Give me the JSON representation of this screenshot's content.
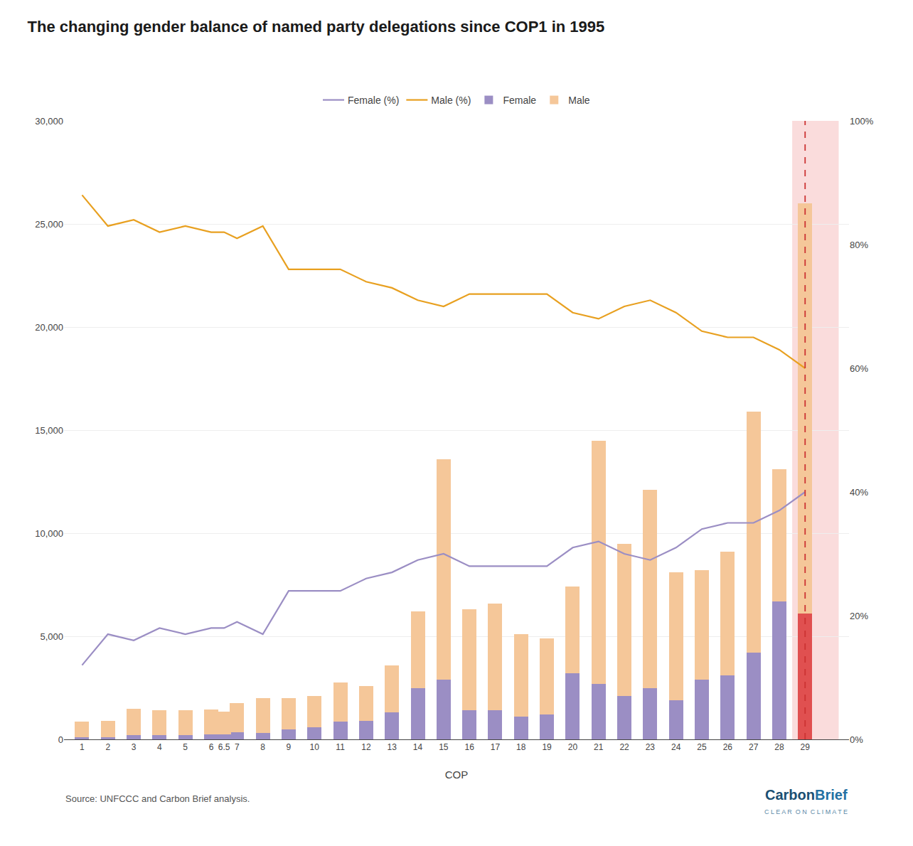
{
  "chart_data": {
    "type": "bar",
    "title": "The changing gender balance of named party delegations since COP1 in 1995",
    "xlabel": "COP",
    "x": [
      1,
      2,
      3,
      4,
      5,
      6,
      6.5,
      7,
      8,
      9,
      10,
      11,
      12,
      13,
      14,
      15,
      16,
      17,
      18,
      19,
      20,
      21,
      22,
      23,
      24,
      25,
      26,
      27,
      28,
      29
    ],
    "series": [
      {
        "name": "Male",
        "type": "bar",
        "color": "#F5C799",
        "values": [
          750,
          800,
          1300,
          1200,
          1200,
          1200,
          1100,
          1400,
          1700,
          1500,
          1500,
          1900,
          1700,
          2300,
          3700,
          10700,
          4900,
          5200,
          4000,
          3700,
          4200,
          11800,
          7400,
          9600,
          6200,
          5300,
          6000,
          11700,
          6400,
          19900
        ]
      },
      {
        "name": "Female",
        "type": "bar",
        "colors": [
          "#9B8EC4",
          "#9B8EC4",
          "#9B8EC4",
          "#9B8EC4",
          "#9B8EC4",
          "#9B8EC4",
          "#9B8EC4",
          "#9B8EC4",
          "#9B8EC4",
          "#9B8EC4",
          "#9B8EC4",
          "#9B8EC4",
          "#9B8EC4",
          "#9B8EC4",
          "#9B8EC4",
          "#9B8EC4",
          "#9B8EC4",
          "#9B8EC4",
          "#9B8EC4",
          "#9B8EC4",
          "#9B8EC4",
          "#9B8EC4",
          "#9B8EC4",
          "#9B8EC4",
          "#9B8EC4",
          "#9B8EC4",
          "#9B8EC4",
          "#9B8EC4",
          "#9B8EC4",
          "#E05050"
        ],
        "values": [
          100,
          100,
          200,
          200,
          200,
          250,
          250,
          350,
          300,
          500,
          600,
          850,
          900,
          1300,
          2500,
          2900,
          1400,
          1400,
          1100,
          1200,
          3200,
          2700,
          2100,
          2500,
          1900,
          2900,
          3100,
          4200,
          6700,
          6100
        ]
      },
      {
        "name": "Male (%)",
        "type": "line",
        "axis": "y2",
        "color": "#E8A020",
        "values": [
          0.88,
          0.83,
          0.84,
          0.82,
          0.83,
          0.82,
          0.82,
          0.81,
          0.83,
          0.76,
          0.76,
          0.76,
          0.74,
          0.73,
          0.71,
          0.7,
          0.72,
          0.72,
          0.72,
          0.72,
          0.69,
          0.68,
          0.7,
          0.71,
          0.69,
          0.66,
          0.65,
          0.65,
          0.63,
          0.6
        ]
      },
      {
        "name": "Female (%)",
        "type": "line",
        "axis": "y2",
        "color": "#9B8EC4",
        "values": [
          0.12,
          0.17,
          0.16,
          0.18,
          0.17,
          0.18,
          0.18,
          0.19,
          0.17,
          0.24,
          0.24,
          0.24,
          0.26,
          0.27,
          0.29,
          0.3,
          0.28,
          0.28,
          0.28,
          0.28,
          0.31,
          0.32,
          0.3,
          0.29,
          0.31,
          0.34,
          0.35,
          0.35,
          0.37,
          0.4
        ]
      }
    ],
    "stacked": true,
    "xlim": [
      0.3,
      30.7
    ],
    "xticks": [
      1,
      2,
      3,
      4,
      5,
      6,
      6.5,
      7,
      8,
      9,
      10,
      11,
      12,
      13,
      14,
      15,
      16,
      17,
      18,
      19,
      20,
      21,
      22,
      23,
      24,
      25,
      26,
      27,
      28,
      29
    ],
    "ylim": [
      0,
      30000
    ],
    "yticks": [
      0,
      {
        "value": 5000,
        "label": "5,000"
      },
      {
        "value": 10000,
        "label": "10,000"
      },
      {
        "value": 15000,
        "label": "15,000"
      },
      {
        "value": 20000,
        "label": "20,000"
      },
      {
        "value": 25000,
        "label": "25,000"
      },
      {
        "value": 30000,
        "label": "30,000"
      }
    ],
    "y2lim": [
      0,
      1.0
    ],
    "y2ticks": [
      {
        "value": 0.0,
        "label": "0%"
      },
      {
        "value": 0.2,
        "label": "20%"
      },
      {
        "value": 0.4,
        "label": "40%"
      },
      {
        "value": 0.6,
        "label": "60%"
      },
      {
        "value": 0.8,
        "label": "80%"
      },
      {
        "value": 1.0,
        "label": "100%"
      }
    ],
    "grid": true,
    "legend": "top",
    "annotations": [
      "Source: UNFCCC and Carbon Brief analysis.",
      "Carbon",
      "Brief",
      "C L E A R  O N  C L I M A T E"
    ]
  }
}
